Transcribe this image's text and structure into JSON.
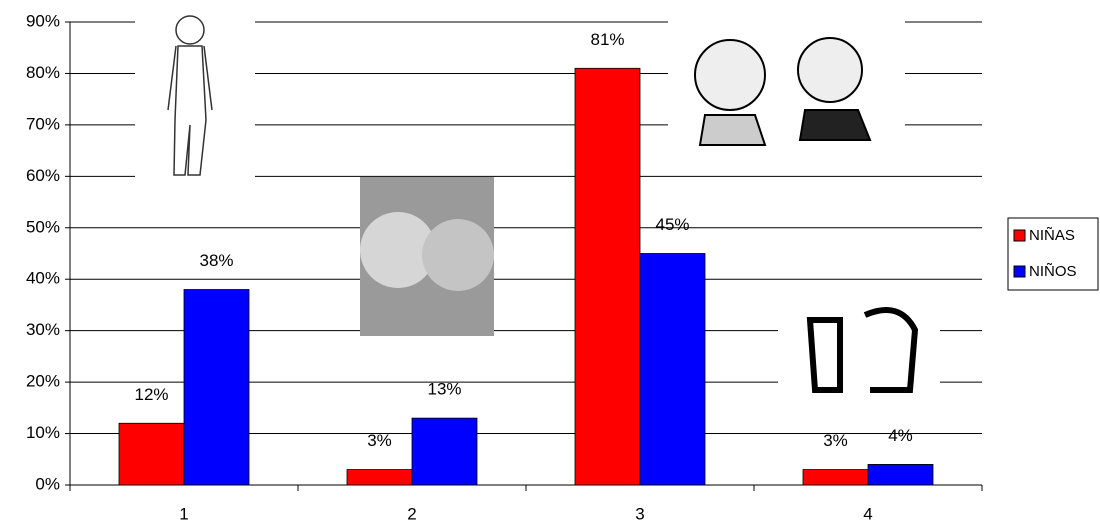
{
  "chart_data": {
    "type": "bar",
    "categories": [
      "1",
      "2",
      "3",
      "4"
    ],
    "series": [
      {
        "name": "NIÑAS",
        "color": "#ff0000",
        "values": [
          12,
          3,
          81,
          3
        ],
        "value_labels": [
          "12%",
          "3%",
          "81%",
          "3%"
        ]
      },
      {
        "name": "NIÑOS",
        "color": "#0000ff",
        "values": [
          38,
          13,
          45,
          4
        ],
        "value_labels": [
          "38%",
          "13%",
          "45%",
          "4%"
        ]
      }
    ],
    "ylim": [
      0,
      90
    ],
    "yticks": [
      {
        "value": 0,
        "label": "0%"
      },
      {
        "value": 10,
        "label": "10%"
      },
      {
        "value": 20,
        "label": "20%"
      },
      {
        "value": 30,
        "label": "30%"
      },
      {
        "value": 40,
        "label": "40%"
      },
      {
        "value": 50,
        "label": "50%"
      },
      {
        "value": 60,
        "label": "60%"
      },
      {
        "value": 70,
        "label": "70%"
      },
      {
        "value": 80,
        "label": "80%"
      },
      {
        "value": 90,
        "label": "90%"
      }
    ],
    "grid": true,
    "legend": "right"
  }
}
